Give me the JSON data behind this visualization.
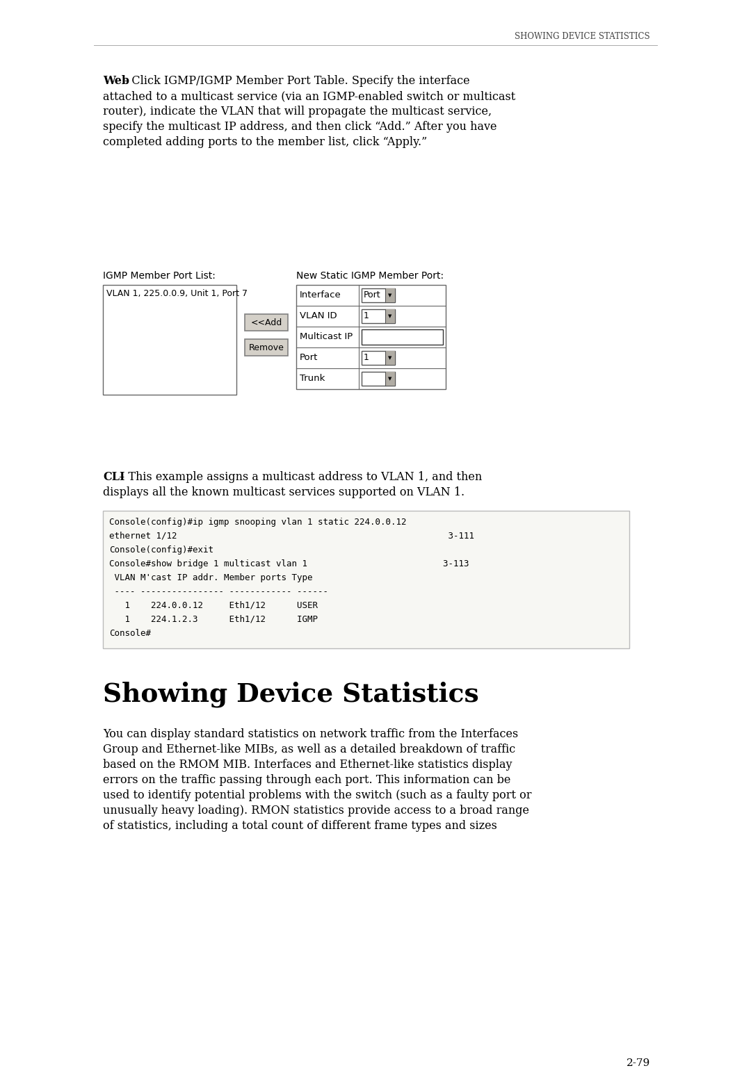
{
  "page_bg": "#ffffff",
  "header_text": "Showing Device Statistics",
  "body_font_size": 11.5,
  "web_bold": "Web",
  "web_line1": " – Click IGMP/IGMP Member Port Table. Specify the interface",
  "web_lines": [
    "attached to a multicast service (via an IGMP-enabled switch or multicast",
    "router), indicate the VLAN that will propagate the multicast service,",
    "specify the multicast IP address, and then click “Add.” After you have",
    "completed adding ports to the member list, click “Apply.”"
  ],
  "igmp_list_label": "IGMP Member Port List:",
  "igmp_list_content": "VLAN 1, 225.0.0.9, Unit 1, Port 7",
  "new_static_label": "New Static IGMP Member Port:",
  "table_rows": [
    {
      "label": "Interface",
      "value": "Port",
      "has_dropdown": true,
      "empty_input": false
    },
    {
      "label": "VLAN ID",
      "value": "1",
      "has_dropdown": true,
      "empty_input": false
    },
    {
      "label": "Multicast IP",
      "value": "",
      "has_dropdown": false,
      "empty_input": true
    },
    {
      "label": "Port",
      "value": "1",
      "has_dropdown": true,
      "empty_input": false
    },
    {
      "label": "Trunk",
      "value": "",
      "has_dropdown": true,
      "empty_input": false
    }
  ],
  "btn_add": "<<Add",
  "btn_remove": "Remove",
  "cli_bold": "CLI",
  "cli_line1": " – This example assigns a multicast address to VLAN 1, and then",
  "cli_line2": "displays all the known multicast services supported on VLAN 1.",
  "console_lines": [
    "Console(config)#ip igmp snooping vlan 1 static 224.0.0.12",
    "ethernet 1/12                                                    3-111",
    "Console(config)#exit",
    "Console#show bridge 1 multicast vlan 1                          3-113",
    " VLAN M'cast IP addr. Member ports Type",
    " ---- ---------------- ------------ ------",
    "   1    224.0.0.12     Eth1/12      USER",
    "   1    224.1.2.3      Eth1/12      IGMP",
    "Console#"
  ],
  "section_title": "Showing Device Statistics",
  "section_body_lines": [
    "You can display standard statistics on network traffic from the Interfaces",
    "Group and Ethernet-like MIBs, as well as a detailed breakdown of traffic",
    "based on the RMOM MIB. Interfaces and Ethernet-like statistics display",
    "errors on the traffic passing through each port. This information can be",
    "used to identify potential problems with the switch (such as a faulty port or",
    "unusually heavy loading). RMON statistics provide access to a broad range",
    "of statistics, including a total count of different frame types and sizes"
  ],
  "page_number": "2-79",
  "console_border": "#bbbbbb",
  "btn_bg": "#d4d0c8",
  "btn_border": "#808080",
  "box_border": "#666666"
}
